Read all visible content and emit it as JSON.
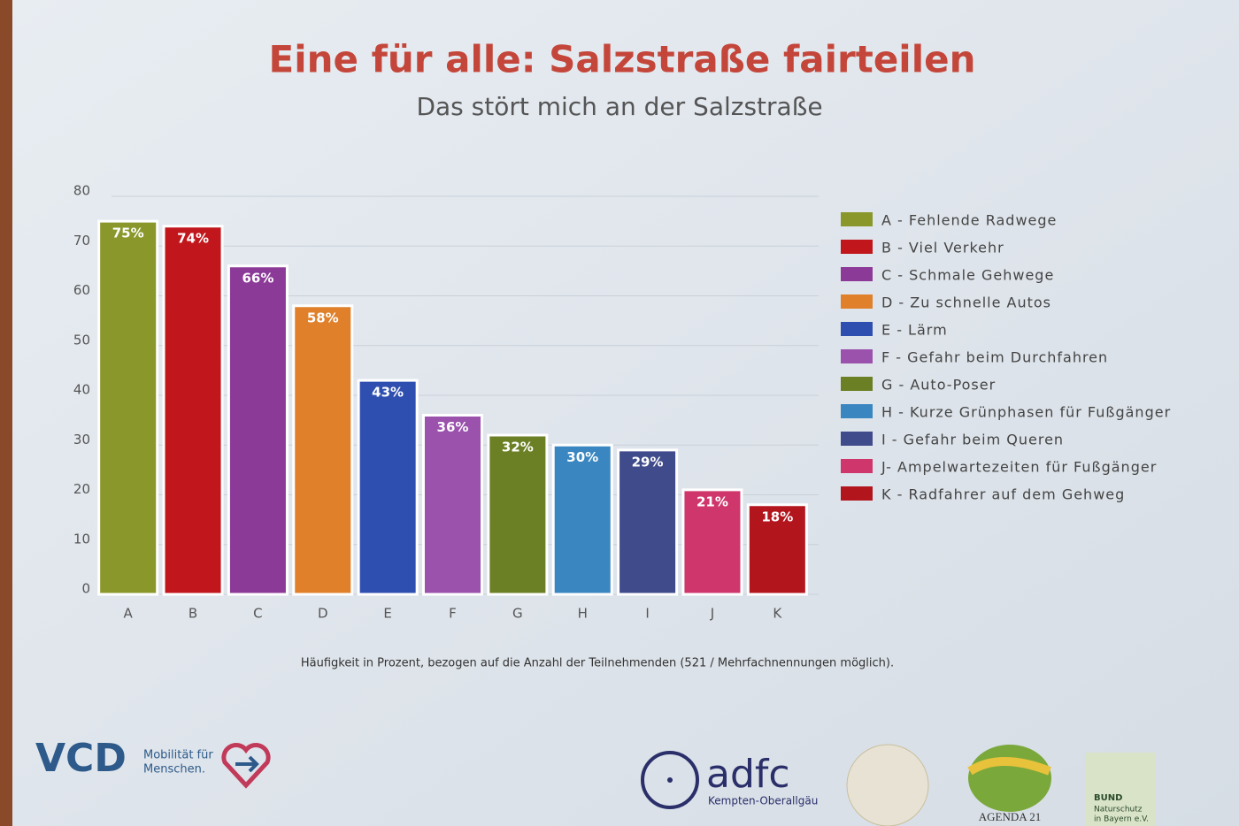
{
  "chart_data": {
    "type": "bar",
    "title": "Eine für alle: Salzstraße fairteilen",
    "subtitle": "Das stört mich an der Salzstraße",
    "categories": [
      "A",
      "B",
      "C",
      "D",
      "E",
      "F",
      "G",
      "H",
      "I",
      "J",
      "K"
    ],
    "values": [
      75,
      74,
      66,
      58,
      43,
      36,
      32,
      30,
      29,
      21,
      18
    ],
    "value_labels": [
      "75%",
      "74%",
      "66%",
      "58%",
      "43%",
      "36%",
      "32%",
      "30%",
      "29%",
      "21%",
      "18%"
    ],
    "colors": [
      "#8a982b",
      "#c0161c",
      "#8c3a98",
      "#e0802a",
      "#2f4fb0",
      "#9a52ad",
      "#6b7f24",
      "#3a86c0",
      "#404b8c",
      "#cf366b",
      "#b3151d"
    ],
    "legend": [
      "A - Fehlende Radwege",
      "B - Viel Verkehr",
      "C - Schmale Gehwege",
      "D - Zu schnelle Autos",
      "E - Lärm",
      "F - Gefahr beim Durchfahren",
      "G - Auto-Poser",
      "H - Kurze Grünphasen für Fußgänger",
      "I - Gefahr beim Queren",
      "J- Ampelwartezeiten für Fußgänger",
      "K - Radfahrer auf dem Gehweg"
    ],
    "ylim": [
      0,
      80
    ],
    "yticks": [
      0,
      10,
      20,
      30,
      40,
      50,
      60,
      70,
      80
    ],
    "grid": true,
    "note": "Häufigkeit in Prozent, bezogen auf die Anzahl der Teilnehmenden (521 / Mehrfachnennungen möglich)."
  },
  "logos": {
    "vcd": "VCD",
    "vcd_tagline_1": "Mobilität für",
    "vcd_tagline_2": "Menschen.",
    "adfc": "adfc",
    "adfc_sub": "Kempten-Oberallgäu",
    "agenda": "AGENDA 21",
    "bund_1": "BUND",
    "bund_2": "Naturschutz",
    "bund_3": "in Bayern e.V."
  }
}
